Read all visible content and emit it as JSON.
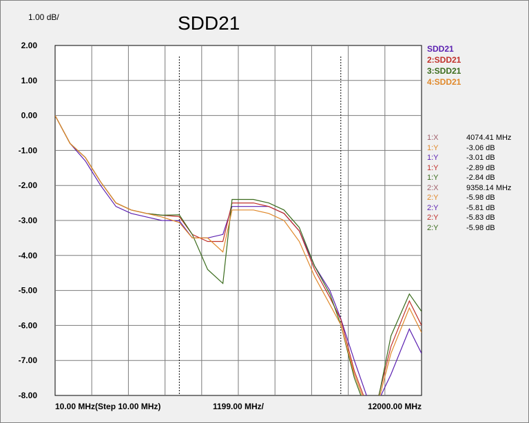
{
  "header": {
    "scale_label": "1.00 dB/",
    "title": "SDD21"
  },
  "x_axis": {
    "start_label": "10.00 MHz(Step 10.00 MHz)",
    "center_label": "1199.00 MHz/",
    "end_label": "12000.00 MHz"
  },
  "legend": [
    {
      "label": "SDD21",
      "color": "#5a1fb0"
    },
    {
      "label": "2:SDD21",
      "color": "#c0302a"
    },
    {
      "label": "3:SDD21",
      "color": "#3a6b1c"
    },
    {
      "label": "4:SDD21",
      "color": "#e0882a"
    }
  ],
  "markers": [
    {
      "id": "1:X",
      "value": "4074.41 MHz",
      "color": "#a0606a"
    },
    {
      "id": "1:Y",
      "value": "-3.06 dB",
      "color": "#e0882a"
    },
    {
      "id": "1:Y",
      "value": "-3.01 dB",
      "color": "#5a1fb0"
    },
    {
      "id": "1:Y",
      "value": "-2.89 dB",
      "color": "#c0302a"
    },
    {
      "id": "1:Y",
      "value": "-2.84 dB",
      "color": "#3a6b1c"
    },
    {
      "id": "2:X",
      "value": "9358.14 MHz",
      "color": "#a0606a"
    },
    {
      "id": "2:Y",
      "value": "-5.98 dB",
      "color": "#e0882a"
    },
    {
      "id": "2:Y",
      "value": "-5.81 dB",
      "color": "#5a1fb0"
    },
    {
      "id": "2:Y",
      "value": "-5.83 dB",
      "color": "#c0302a"
    },
    {
      "id": "2:Y",
      "value": "-5.98 dB",
      "color": "#3a6b1c"
    }
  ],
  "chart_data": {
    "type": "line",
    "title": "SDD21",
    "xlabel": "",
    "ylabel": "",
    "xlim": [
      10,
      12000
    ],
    "ylim": [
      -8,
      2
    ],
    "y_ticks": [
      "2.00",
      "1.00",
      "0.00",
      "-1.00",
      "-2.00",
      "-3.00",
      "-4.00",
      "-5.00",
      "-6.00",
      "-7.00",
      "-8.00"
    ],
    "grid": true,
    "legend_position": "right",
    "marker_x": [
      4074.41,
      9358.14
    ],
    "series": [
      {
        "name": "SDD21",
        "color": "#5a1fb0",
        "x": [
          10,
          500,
          1000,
          1500,
          2000,
          2500,
          3000,
          3500,
          4074,
          4500,
          5000,
          5500,
          5800,
          6500,
          7000,
          7500,
          8000,
          8500,
          9000,
          9358,
          9800,
          10400,
          11000,
          11600,
          12000
        ],
        "y": [
          0.0,
          -0.8,
          -1.3,
          -2.0,
          -2.6,
          -2.8,
          -2.9,
          -3.0,
          -3.01,
          -3.5,
          -3.5,
          -3.4,
          -2.6,
          -2.6,
          -2.6,
          -2.8,
          -3.3,
          -4.3,
          -5.0,
          -5.81,
          -7.0,
          -8.5,
          -7.4,
          -6.1,
          -6.8
        ]
      },
      {
        "name": "2:SDD21",
        "color": "#c0302a",
        "x": [
          10,
          500,
          1000,
          1500,
          2000,
          2500,
          3000,
          3500,
          4074,
          4500,
          5000,
          5500,
          5800,
          6500,
          7000,
          7500,
          8000,
          8500,
          9000,
          9358,
          9800,
          10400,
          11000,
          11600,
          12000
        ],
        "y": [
          0.0,
          -0.8,
          -1.2,
          -1.9,
          -2.5,
          -2.7,
          -2.8,
          -2.85,
          -2.89,
          -3.4,
          -3.6,
          -3.6,
          -2.5,
          -2.5,
          -2.6,
          -2.8,
          -3.3,
          -4.4,
          -5.2,
          -5.83,
          -7.3,
          -8.7,
          -6.6,
          -5.3,
          -6.0
        ]
      },
      {
        "name": "3:SDD21",
        "color": "#3a6b1c",
        "x": [
          10,
          500,
          1000,
          1500,
          2000,
          2500,
          3000,
          3500,
          4074,
          4500,
          5000,
          5500,
          5800,
          6500,
          7000,
          7500,
          8000,
          8500,
          9000,
          9358,
          9800,
          10400,
          11000,
          11600,
          12000
        ],
        "y": [
          0.0,
          -0.8,
          -1.2,
          -1.9,
          -2.5,
          -2.7,
          -2.8,
          -2.85,
          -2.84,
          -3.4,
          -4.4,
          -4.8,
          -2.4,
          -2.4,
          -2.5,
          -2.7,
          -3.2,
          -4.3,
          -5.1,
          -5.98,
          -7.5,
          -8.9,
          -6.3,
          -5.1,
          -5.6
        ]
      },
      {
        "name": "4:SDD21",
        "color": "#e0882a",
        "x": [
          10,
          500,
          1000,
          1500,
          2000,
          2500,
          3000,
          3500,
          4074,
          4500,
          5000,
          5500,
          5800,
          6500,
          7000,
          7500,
          8000,
          8500,
          9000,
          9358,
          9800,
          10400,
          11000,
          11600,
          12000
        ],
        "y": [
          0.0,
          -0.8,
          -1.2,
          -1.9,
          -2.5,
          -2.7,
          -2.8,
          -2.9,
          -3.06,
          -3.5,
          -3.5,
          -3.9,
          -2.7,
          -2.7,
          -2.8,
          -3.0,
          -3.6,
          -4.6,
          -5.4,
          -5.98,
          -7.4,
          -8.8,
          -6.8,
          -5.5,
          -6.2
        ]
      }
    ]
  }
}
